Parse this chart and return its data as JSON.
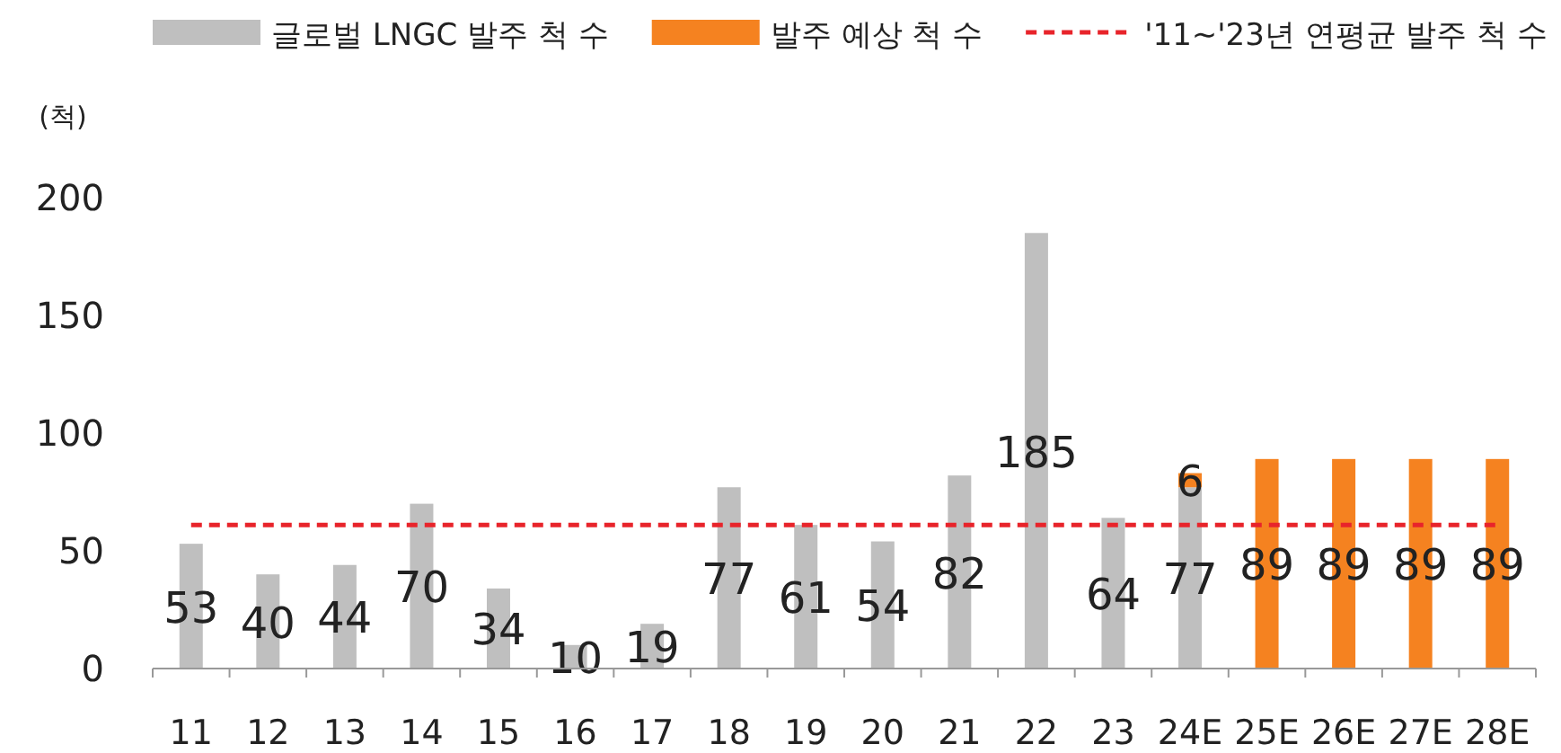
{
  "chart_data": {
    "type": "bar",
    "ylabel": "(척)",
    "stacked": true,
    "data_labels": true,
    "legend": "top",
    "categories": [
      "11",
      "12",
      "13",
      "14",
      "15",
      "16",
      "17",
      "18",
      "19",
      "20",
      "21",
      "22",
      "23",
      "24E",
      "25E",
      "26E",
      "27E",
      "28E"
    ],
    "series": [
      {
        "name": "글로벌 LNGC 발주 척 수",
        "color": "#bfbfbf",
        "values": [
          53,
          40,
          44,
          70,
          34,
          10,
          19,
          77,
          61,
          54,
          82,
          185,
          64,
          77,
          null,
          null,
          null,
          null
        ]
      },
      {
        "name": "발주 예상 척 수",
        "color": "#f58220",
        "values": [
          null,
          null,
          null,
          null,
          null,
          null,
          null,
          null,
          null,
          null,
          null,
          null,
          null,
          6,
          89,
          89,
          89,
          89
        ]
      }
    ],
    "ylim": [
      0,
      200
    ],
    "yticks": [
      0,
      50,
      100,
      150,
      200
    ],
    "ref_lines": [
      {
        "axis": "y",
        "value": 61,
        "label": "'11~'23년 연평균 발주 척 수",
        "color": "#e8242b",
        "line_style": "dashed"
      }
    ]
  }
}
